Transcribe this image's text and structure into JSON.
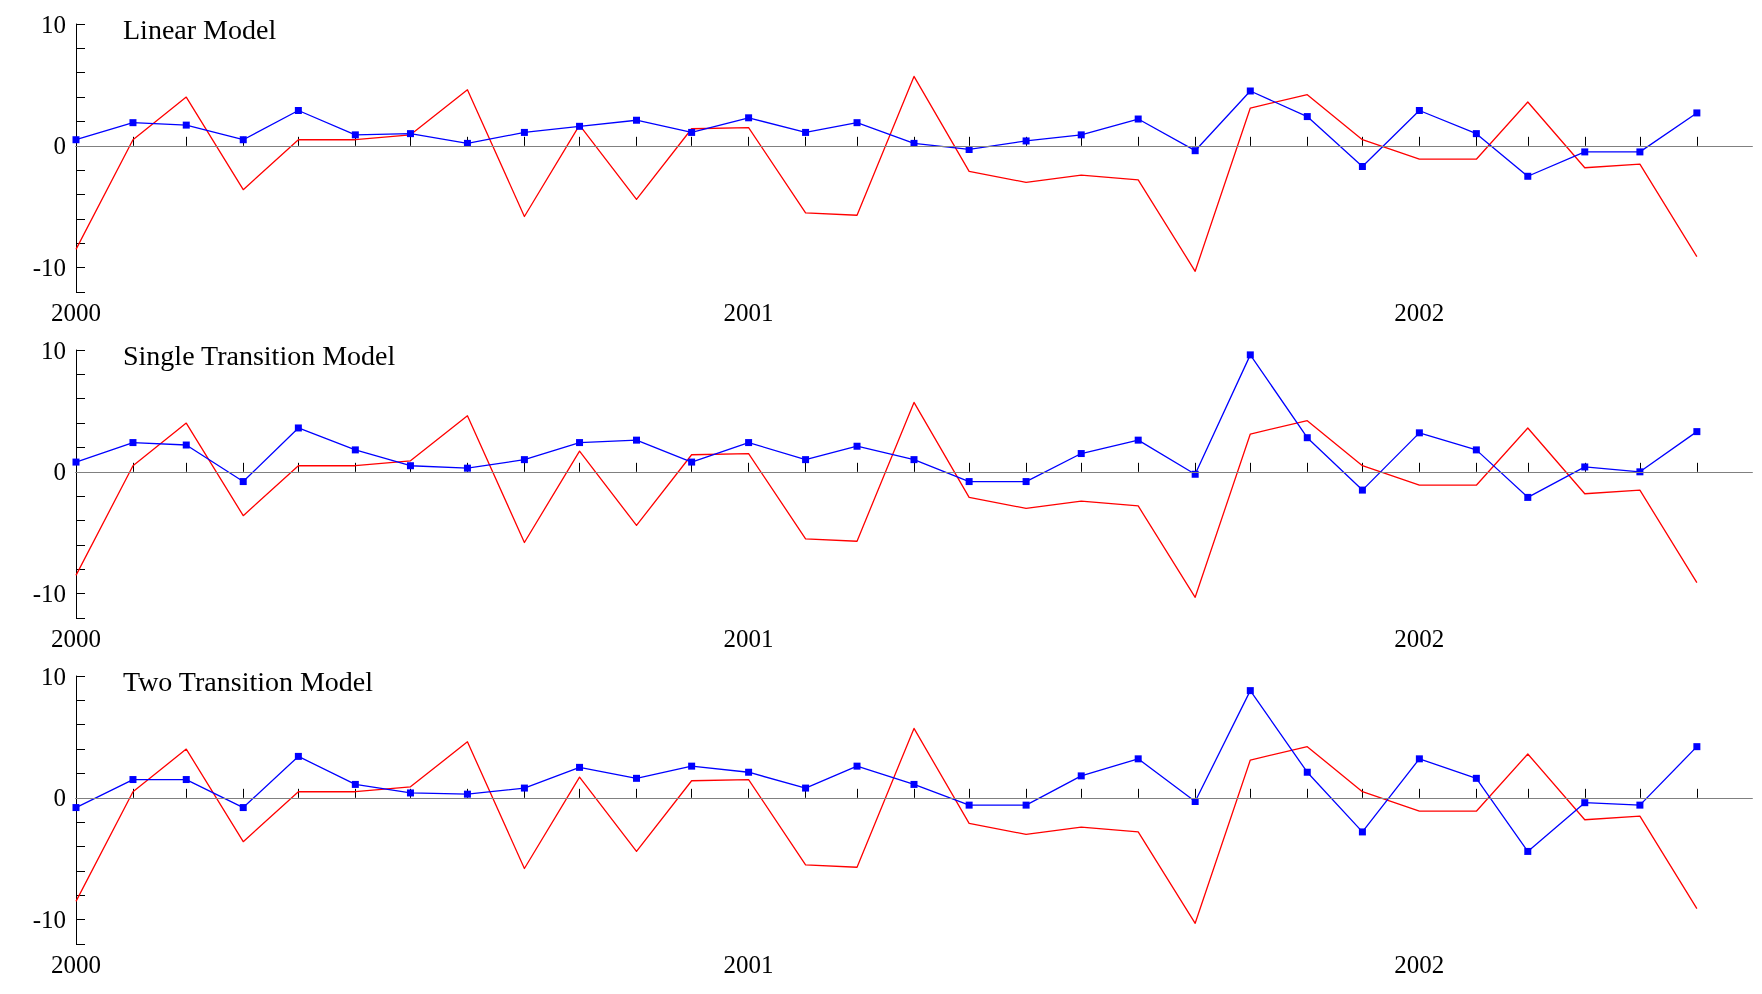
{
  "chart_data": [
    {
      "type": "line",
      "title": "Linear Model",
      "x": [
        "2000-01",
        "2000-02",
        "2000-03",
        "2000-04",
        "2000-05",
        "2000-06",
        "2000-07",
        "2000-08",
        "2000-09",
        "2000-10",
        "2000-11",
        "2000-12",
        "2001-01",
        "2001-02",
        "2001-03",
        "2001-04",
        "2001-05",
        "2001-06",
        "2001-07",
        "2001-08",
        "2001-09",
        "2001-10",
        "2001-11",
        "2001-12",
        "2002-01",
        "2002-02",
        "2002-03",
        "2002-04",
        "2002-05",
        "2002-06"
      ],
      "series": [
        {
          "color": "#ff0000",
          "marker": "none",
          "values": [
            -8.5,
            0.5,
            4.0,
            -3.6,
            0.5,
            0.5,
            0.9,
            4.6,
            -5.8,
            1.7,
            -4.4,
            1.4,
            1.5,
            -5.5,
            -5.7,
            5.7,
            -2.1,
            -3.0,
            -2.4,
            -2.8,
            -10.3,
            3.1,
            4.2,
            0.5,
            -1.1,
            -1.1,
            3.6,
            -1.8,
            -1.5,
            -9.1
          ]
        },
        {
          "color": "#0000ff",
          "marker": "square",
          "values": [
            0.5,
            1.9,
            1.7,
            0.5,
            2.9,
            0.9,
            1.0,
            0.2,
            1.1,
            1.6,
            2.1,
            1.1,
            2.3,
            1.1,
            1.9,
            0.2,
            -0.3,
            0.4,
            0.9,
            2.2,
            -0.4,
            4.5,
            2.4,
            -1.7,
            2.9,
            1.0,
            -2.5,
            -0.5,
            -0.5,
            2.7
          ]
        }
      ],
      "xlim": [
        "2000-01",
        "2002-07"
      ],
      "xticks": [
        "2000",
        {
          "value": "2000-02",
          "label": null
        },
        {
          "value": "2000-03",
          "label": null
        },
        {
          "value": "2000-04",
          "label": null
        },
        {
          "value": "2000-05",
          "label": null
        },
        {
          "value": "2000-06",
          "label": null
        },
        {
          "value": "2000-07",
          "label": null
        },
        {
          "value": "2000-08",
          "label": null
        },
        {
          "value": "2000-09",
          "label": null
        },
        {
          "value": "2000-10",
          "label": null
        },
        {
          "value": "2000-11",
          "label": null
        },
        {
          "value": "2000-12",
          "label": null
        },
        "2001",
        {
          "value": "2001-02",
          "label": null
        },
        {
          "value": "2001-03",
          "label": null
        },
        {
          "value": "2001-04",
          "label": null
        },
        {
          "value": "2001-05",
          "label": null
        },
        {
          "value": "2001-06",
          "label": null
        },
        {
          "value": "2001-07",
          "label": null
        },
        {
          "value": "2001-08",
          "label": null
        },
        {
          "value": "2001-09",
          "label": null
        },
        {
          "value": "2001-10",
          "label": null
        },
        {
          "value": "2001-11",
          "label": null
        },
        {
          "value": "2001-12",
          "label": null
        },
        "2002",
        {
          "value": "2002-02",
          "label": null
        },
        {
          "value": "2002-03",
          "label": null
        },
        {
          "value": "2002-04",
          "label": null
        },
        {
          "value": "2002-05",
          "label": null
        },
        {
          "value": "2002-06",
          "label": null
        }
      ],
      "ylim": [
        -12,
        10
      ],
      "yticks": [
        {
          "value": -12,
          "label": null
        },
        -10,
        {
          "value": -8,
          "label": null
        },
        {
          "value": -6,
          "label": null
        },
        {
          "value": -4,
          "label": null
        },
        {
          "value": -2,
          "label": null
        },
        0,
        {
          "value": 2,
          "label": null
        },
        {
          "value": 4,
          "label": null
        },
        {
          "value": 6,
          "label": null
        },
        {
          "value": 8,
          "label": null
        },
        10
      ],
      "ref_lines": [
        {
          "axis": "y",
          "value": 0,
          "color": "#808080"
        }
      ]
    },
    {
      "type": "line",
      "title": "Single Transition Model",
      "x": [
        "2000-01",
        "2000-02",
        "2000-03",
        "2000-04",
        "2000-05",
        "2000-06",
        "2000-07",
        "2000-08",
        "2000-09",
        "2000-10",
        "2000-11",
        "2000-12",
        "2001-01",
        "2001-02",
        "2001-03",
        "2001-04",
        "2001-05",
        "2001-06",
        "2001-07",
        "2001-08",
        "2001-09",
        "2001-10",
        "2001-11",
        "2001-12",
        "2002-01",
        "2002-02",
        "2002-03",
        "2002-04",
        "2002-05",
        "2002-06"
      ],
      "series": [
        {
          "color": "#ff0000",
          "marker": "none",
          "values": [
            -8.5,
            0.5,
            4.0,
            -3.6,
            0.5,
            0.5,
            0.9,
            4.6,
            -5.8,
            1.7,
            -4.4,
            1.4,
            1.5,
            -5.5,
            -5.7,
            5.7,
            -2.1,
            -3.0,
            -2.4,
            -2.8,
            -10.3,
            3.1,
            4.2,
            0.5,
            -1.1,
            -1.1,
            3.6,
            -1.8,
            -1.5,
            -9.1
          ]
        },
        {
          "color": "#0000ff",
          "marker": "square",
          "values": [
            0.8,
            2.4,
            2.2,
            -0.8,
            3.6,
            1.8,
            0.5,
            0.3,
            1.0,
            2.4,
            2.6,
            0.8,
            2.4,
            1.0,
            2.1,
            1.0,
            -0.8,
            -0.8,
            1.5,
            2.6,
            -0.2,
            9.6,
            2.8,
            -1.5,
            3.2,
            1.8,
            -2.1,
            0.4,
            0.0,
            3.3
          ]
        }
      ],
      "xlim": [
        "2000-01",
        "2002-07"
      ],
      "xticks": [
        "2000",
        {
          "value": "2000-02",
          "label": null
        },
        {
          "value": "2000-03",
          "label": null
        },
        {
          "value": "2000-04",
          "label": null
        },
        {
          "value": "2000-05",
          "label": null
        },
        {
          "value": "2000-06",
          "label": null
        },
        {
          "value": "2000-07",
          "label": null
        },
        {
          "value": "2000-08",
          "label": null
        },
        {
          "value": "2000-09",
          "label": null
        },
        {
          "value": "2000-10",
          "label": null
        },
        {
          "value": "2000-11",
          "label": null
        },
        {
          "value": "2000-12",
          "label": null
        },
        "2001",
        {
          "value": "2001-02",
          "label": null
        },
        {
          "value": "2001-03",
          "label": null
        },
        {
          "value": "2001-04",
          "label": null
        },
        {
          "value": "2001-05",
          "label": null
        },
        {
          "value": "2001-06",
          "label": null
        },
        {
          "value": "2001-07",
          "label": null
        },
        {
          "value": "2001-08",
          "label": null
        },
        {
          "value": "2001-09",
          "label": null
        },
        {
          "value": "2001-10",
          "label": null
        },
        {
          "value": "2001-11",
          "label": null
        },
        {
          "value": "2001-12",
          "label": null
        },
        "2002",
        {
          "value": "2002-02",
          "label": null
        },
        {
          "value": "2002-03",
          "label": null
        },
        {
          "value": "2002-04",
          "label": null
        },
        {
          "value": "2002-05",
          "label": null
        },
        {
          "value": "2002-06",
          "label": null
        }
      ],
      "ylim": [
        -12,
        10
      ],
      "yticks": [
        {
          "value": -12,
          "label": null
        },
        -10,
        {
          "value": -8,
          "label": null
        },
        {
          "value": -6,
          "label": null
        },
        {
          "value": -4,
          "label": null
        },
        {
          "value": -2,
          "label": null
        },
        0,
        {
          "value": 2,
          "label": null
        },
        {
          "value": 4,
          "label": null
        },
        {
          "value": 6,
          "label": null
        },
        {
          "value": 8,
          "label": null
        },
        10
      ],
      "ref_lines": [
        {
          "axis": "y",
          "value": 0,
          "color": "#808080"
        }
      ]
    },
    {
      "type": "line",
      "title": "Two Transition Model",
      "x": [
        "2000-01",
        "2000-02",
        "2000-03",
        "2000-04",
        "2000-05",
        "2000-06",
        "2000-07",
        "2000-08",
        "2000-09",
        "2000-10",
        "2000-11",
        "2000-12",
        "2001-01",
        "2001-02",
        "2001-03",
        "2001-04",
        "2001-05",
        "2001-06",
        "2001-07",
        "2001-08",
        "2001-09",
        "2001-10",
        "2001-11",
        "2001-12",
        "2002-01",
        "2002-02",
        "2002-03",
        "2002-04",
        "2002-05",
        "2002-06"
      ],
      "series": [
        {
          "color": "#ff0000",
          "marker": "none",
          "values": [
            -8.5,
            0.5,
            4.0,
            -3.6,
            0.5,
            0.5,
            0.9,
            4.6,
            -5.8,
            1.7,
            -4.4,
            1.4,
            1.5,
            -5.5,
            -5.7,
            5.7,
            -2.1,
            -3.0,
            -2.4,
            -2.8,
            -10.3,
            3.1,
            4.2,
            0.5,
            -1.1,
            -1.1,
            3.6,
            -1.8,
            -1.5,
            -9.1
          ]
        },
        {
          "color": "#0000ff",
          "marker": "square",
          "values": [
            -0.8,
            1.5,
            1.5,
            -0.8,
            3.4,
            1.1,
            0.4,
            0.3,
            0.8,
            2.5,
            1.6,
            2.6,
            2.1,
            0.8,
            2.6,
            1.1,
            -0.6,
            -0.6,
            1.8,
            3.2,
            -0.3,
            8.8,
            2.1,
            -2.8,
            3.2,
            1.6,
            -4.4,
            -0.4,
            -0.6,
            4.2
          ]
        }
      ],
      "xlim": [
        "2000-01",
        "2002-07"
      ],
      "xticks": [
        "2000",
        {
          "value": "2000-02",
          "label": null
        },
        {
          "value": "2000-03",
          "label": null
        },
        {
          "value": "2000-04",
          "label": null
        },
        {
          "value": "2000-05",
          "label": null
        },
        {
          "value": "2000-06",
          "label": null
        },
        {
          "value": "2000-07",
          "label": null
        },
        {
          "value": "2000-08",
          "label": null
        },
        {
          "value": "2000-09",
          "label": null
        },
        {
          "value": "2000-10",
          "label": null
        },
        {
          "value": "2000-11",
          "label": null
        },
        {
          "value": "2000-12",
          "label": null
        },
        "2001",
        {
          "value": "2001-02",
          "label": null
        },
        {
          "value": "2001-03",
          "label": null
        },
        {
          "value": "2001-04",
          "label": null
        },
        {
          "value": "2001-05",
          "label": null
        },
        {
          "value": "2001-06",
          "label": null
        },
        {
          "value": "2001-07",
          "label": null
        },
        {
          "value": "2001-08",
          "label": null
        },
        {
          "value": "2001-09",
          "label": null
        },
        {
          "value": "2001-10",
          "label": null
        },
        {
          "value": "2001-11",
          "label": null
        },
        {
          "value": "2001-12",
          "label": null
        },
        "2002",
        {
          "value": "2002-02",
          "label": null
        },
        {
          "value": "2002-03",
          "label": null
        },
        {
          "value": "2002-04",
          "label": null
        },
        {
          "value": "2002-05",
          "label": null
        },
        {
          "value": "2002-06",
          "label": null
        }
      ],
      "ylim": [
        -12,
        10
      ],
      "yticks": [
        {
          "value": -12,
          "label": null
        },
        -10,
        {
          "value": -8,
          "label": null
        },
        {
          "value": -6,
          "label": null
        },
        {
          "value": -4,
          "label": null
        },
        {
          "value": -2,
          "label": null
        },
        0,
        {
          "value": 2,
          "label": null
        },
        {
          "value": 4,
          "label": null
        },
        {
          "value": 6,
          "label": null
        },
        {
          "value": 8,
          "label": null
        },
        10
      ],
      "ref_lines": [
        {
          "axis": "y",
          "value": 0,
          "color": "#808080"
        }
      ]
    }
  ]
}
